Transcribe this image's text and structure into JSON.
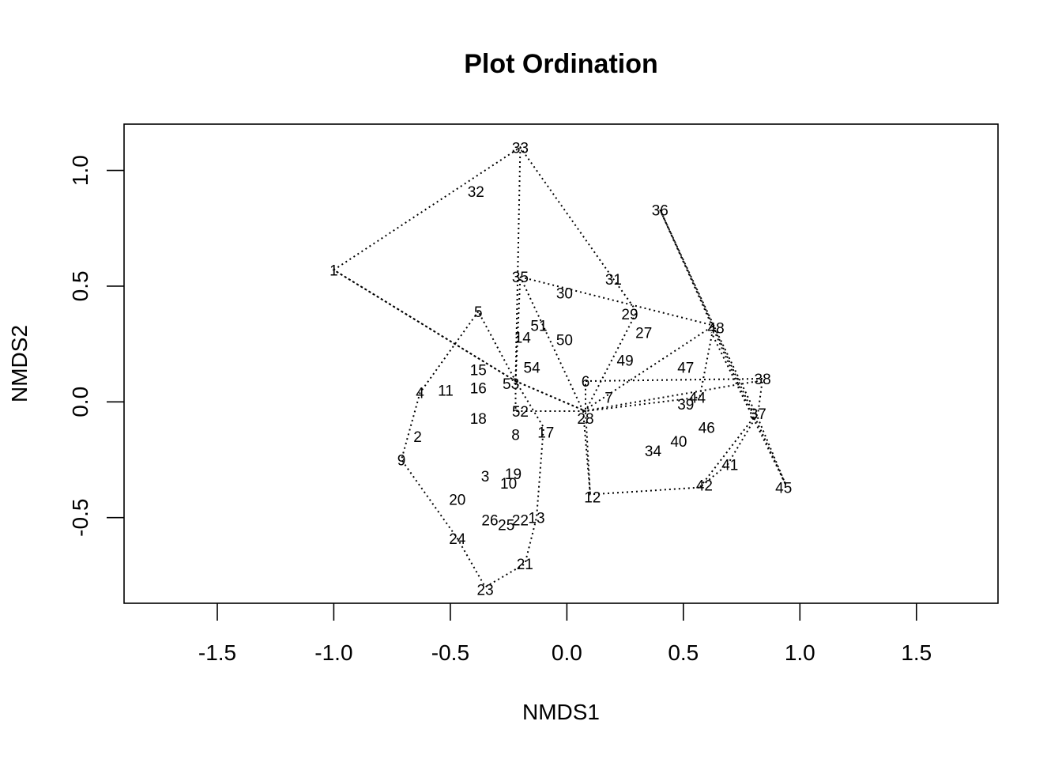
{
  "chart_data": {
    "type": "scatter",
    "title": "Plot Ordination",
    "xlabel": "NMDS1",
    "ylabel": "NMDS2",
    "xlim": [
      -1.9,
      1.85
    ],
    "ylim": [
      -0.87,
      1.2
    ],
    "xticks": [
      -1.5,
      -1.0,
      -0.5,
      0.0,
      0.5,
      1.0,
      1.5
    ],
    "xtick_labels": [
      "-1.5",
      "-1.0",
      "-0.5",
      "0.0",
      "0.5",
      "1.0",
      "1.5"
    ],
    "yticks": [
      -0.5,
      0.0,
      0.5,
      1.0
    ],
    "ytick_labels": [
      "-0.5",
      "0.0",
      "0.5",
      "1.0"
    ],
    "grid": false,
    "points": [
      {
        "label": "1",
        "x": -1.0,
        "y": 0.57
      },
      {
        "label": "2",
        "x": -0.64,
        "y": -0.15
      },
      {
        "label": "3",
        "x": -0.35,
        "y": -0.32
      },
      {
        "label": "4",
        "x": -0.63,
        "y": 0.04
      },
      {
        "label": "5",
        "x": -0.38,
        "y": 0.39
      },
      {
        "label": "6",
        "x": 0.08,
        "y": 0.09
      },
      {
        "label": "7",
        "x": 0.18,
        "y": 0.02
      },
      {
        "label": "8",
        "x": -0.22,
        "y": -0.14
      },
      {
        "label": "9",
        "x": -0.71,
        "y": -0.25
      },
      {
        "label": "10",
        "x": -0.25,
        "y": -0.35
      },
      {
        "label": "11",
        "x": -0.52,
        "y": 0.05
      },
      {
        "label": "12",
        "x": 0.11,
        "y": -0.41
      },
      {
        "label": "13",
        "x": -0.13,
        "y": -0.5
      },
      {
        "label": "14",
        "x": -0.19,
        "y": 0.28
      },
      {
        "label": "15",
        "x": -0.38,
        "y": 0.14
      },
      {
        "label": "16",
        "x": -0.38,
        "y": 0.06
      },
      {
        "label": "17",
        "x": -0.09,
        "y": -0.13
      },
      {
        "label": "18",
        "x": -0.38,
        "y": -0.07
      },
      {
        "label": "19",
        "x": -0.23,
        "y": -0.31
      },
      {
        "label": "20",
        "x": -0.47,
        "y": -0.42
      },
      {
        "label": "21",
        "x": -0.18,
        "y": -0.7
      },
      {
        "label": "22",
        "x": -0.2,
        "y": -0.51
      },
      {
        "label": "23",
        "x": -0.35,
        "y": -0.81
      },
      {
        "label": "24",
        "x": -0.47,
        "y": -0.59
      },
      {
        "label": "25",
        "x": -0.26,
        "y": -0.53
      },
      {
        "label": "26",
        "x": -0.33,
        "y": -0.51
      },
      {
        "label": "27",
        "x": 0.33,
        "y": 0.3
      },
      {
        "label": "28",
        "x": 0.08,
        "y": -0.07
      },
      {
        "label": "29",
        "x": 0.27,
        "y": 0.38
      },
      {
        "label": "30",
        "x": -0.01,
        "y": 0.47
      },
      {
        "label": "31",
        "x": 0.2,
        "y": 0.53
      },
      {
        "label": "32",
        "x": -0.39,
        "y": 0.91
      },
      {
        "label": "33",
        "x": -0.2,
        "y": 1.1
      },
      {
        "label": "34",
        "x": 0.37,
        "y": -0.21
      },
      {
        "label": "35",
        "x": -0.2,
        "y": 0.54
      },
      {
        "label": "36",
        "x": 0.4,
        "y": 0.83
      },
      {
        "label": "37",
        "x": 0.82,
        "y": -0.05
      },
      {
        "label": "38",
        "x": 0.84,
        "y": 0.1
      },
      {
        "label": "39",
        "x": 0.51,
        "y": -0.01
      },
      {
        "label": "40",
        "x": 0.48,
        "y": -0.17
      },
      {
        "label": "41",
        "x": 0.7,
        "y": -0.27
      },
      {
        "label": "42",
        "x": 0.59,
        "y": -0.36
      },
      {
        "label": "44",
        "x": 0.56,
        "y": 0.02
      },
      {
        "label": "45",
        "x": 0.93,
        "y": -0.37
      },
      {
        "label": "46",
        "x": 0.6,
        "y": -0.11
      },
      {
        "label": "47",
        "x": 0.51,
        "y": 0.15
      },
      {
        "label": "48",
        "x": 0.64,
        "y": 0.32
      },
      {
        "label": "49",
        "x": 0.25,
        "y": 0.18
      },
      {
        "label": "50",
        "x": -0.01,
        "y": 0.27
      },
      {
        "label": "51",
        "x": -0.12,
        "y": 0.33
      },
      {
        "label": "52",
        "x": -0.2,
        "y": -0.04
      },
      {
        "label": "53",
        "x": -0.24,
        "y": 0.08
      },
      {
        "label": "54",
        "x": -0.15,
        "y": 0.15
      }
    ],
    "spiders": [
      {
        "center": [
          -0.22,
          0.09
        ],
        "ends": [
          [
            -1.0,
            0.57
          ],
          [
            -0.2,
            1.1
          ],
          [
            0.08,
            -0.04
          ]
        ]
      },
      {
        "center": [
          0.07,
          -0.04
        ],
        "ends": [
          [
            -0.2,
            0.54
          ],
          [
            0.63,
            0.33
          ],
          [
            0.82,
            0.09
          ],
          [
            0.1,
            -0.4
          ]
        ]
      },
      {
        "center": [
          0.8,
          -0.07
        ],
        "ends": [
          [
            0.4,
            0.83
          ],
          [
            0.62,
            0.3
          ],
          [
            0.94,
            -0.36
          ],
          [
            0.57,
            -0.37
          ]
        ]
      }
    ],
    "hulls": [
      [
        [
          -1.0,
          0.57
        ],
        [
          -0.2,
          1.1
        ],
        [
          0.2,
          0.53
        ],
        [
          0.3,
          0.39
        ],
        [
          0.08,
          -0.04
        ],
        [
          -0.22,
          0.09
        ]
      ],
      [
        [
          -0.38,
          0.39
        ],
        [
          -0.63,
          0.04
        ],
        [
          -0.71,
          -0.25
        ],
        [
          -0.47,
          -0.59
        ],
        [
          -0.35,
          -0.8
        ],
        [
          -0.18,
          -0.7
        ],
        [
          -0.13,
          -0.5
        ],
        [
          -0.1,
          -0.11
        ],
        [
          -0.22,
          0.09
        ]
      ],
      [
        [
          -0.2,
          0.54
        ],
        [
          0.63,
          0.33
        ],
        [
          0.57,
          0.02
        ],
        [
          0.08,
          -0.04
        ],
        [
          -0.22,
          -0.04
        ],
        [
          -0.22,
          0.09
        ]
      ],
      [
        [
          0.08,
          0.09
        ],
        [
          0.84,
          0.1
        ],
        [
          0.82,
          -0.05
        ],
        [
          0.69,
          -0.27
        ],
        [
          0.57,
          -0.37
        ],
        [
          0.1,
          -0.4
        ],
        [
          0.08,
          -0.04
        ]
      ],
      [
        [
          0.4,
          0.83
        ],
        [
          0.94,
          -0.36
        ],
        [
          0.82,
          -0.07
        ],
        [
          0.63,
          0.33
        ]
      ]
    ]
  }
}
